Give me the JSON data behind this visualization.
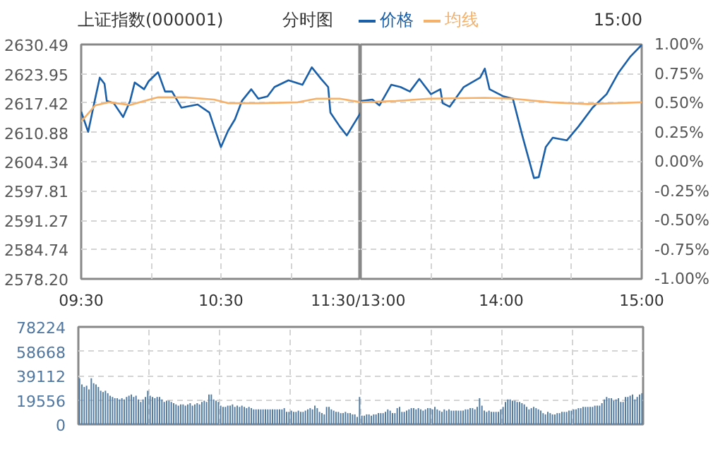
{
  "chart_data": [
    {
      "type": "line",
      "title": "上证指数(000001)",
      "subtitle": "分时图",
      "annotations": [
        "15:00"
      ],
      "legend": "top",
      "grid": true,
      "xlim": [
        9.5,
        11.5
      ],
      "xticks": [
        {
          "value": 9.5,
          "label": "09:30"
        },
        {
          "value": 10,
          "label": null
        },
        {
          "value": 10.5,
          "label": "10:30"
        },
        {
          "value": 11,
          "label": null
        },
        {
          "value": 11.5,
          "label": "11:30/"
        }
      ],
      "ylim": [
        2578.2,
        2630.49
      ],
      "yticks": [
        2630.49,
        2623.95,
        2617.42,
        2610.88,
        2604.34,
        2597.81,
        2591.27,
        2584.74,
        {
          "value": 2578.2,
          "label": "2578.20"
        }
      ],
      "series": [
        {
          "name": "价格",
          "color": "#1a5fa8",
          "x": [
            9.5,
            9.55,
            9.6,
            9.633,
            9.667,
            9.683,
            9.733,
            9.8,
            9.85,
            9.883,
            9.95,
            9.983,
            10.05,
            10.1,
            10.15,
            10.217,
            10.333,
            10.417,
            10.45,
            10.5,
            10.55,
            10.6,
            10.65,
            10.717,
            10.767,
            10.833,
            10.883,
            10.983,
            11.083,
            11.15,
            11.217,
            11.267,
            11.283,
            11.35,
            11.4,
            11.5
          ],
          "values": [
            2615.5,
            2611.0,
            2618.4,
            2623.1,
            2621.7,
            2617.9,
            2617.4,
            2614.3,
            2617.9,
            2622.0,
            2620.5,
            2622.3,
            2624.3,
            2620.0,
            2620.0,
            2616.4,
            2617.1,
            2615.3,
            2612.2,
            2607.6,
            2611.2,
            2613.8,
            2617.9,
            2620.5,
            2618.4,
            2618.9,
            2621.0,
            2622.5,
            2621.5,
            2625.4,
            2622.8,
            2621.0,
            2615.3,
            2612.2,
            2610.2,
            2615.3
          ]
        },
        {
          "name": "均线",
          "color": "#f5b06a",
          "x": [
            9.5,
            9.6,
            9.7,
            9.85,
            9.95,
            10.05,
            10.25,
            10.45,
            10.55,
            10.783,
            11.05,
            11.183,
            11.35,
            11.5
          ],
          "values": [
            2613.3,
            2616.9,
            2617.6,
            2617.0,
            2617.9,
            2618.7,
            2618.7,
            2618.2,
            2617.4,
            2617.4,
            2617.6,
            2618.4,
            2618.4,
            2617.6
          ]
        }
      ]
    },
    {
      "type": "line",
      "tick_labels": "x",
      "grid": true,
      "xlim": [
        13,
        15
      ],
      "xticks": [
        {
          "value": 13,
          "label": "13:00"
        },
        {
          "value": 13.5,
          "label": null
        },
        {
          "value": 14,
          "label": "14:00"
        },
        {
          "value": 14.5,
          "label": null
        },
        {
          "value": 15,
          "label": "15:00"
        }
      ],
      "ylim": [
        2578.2,
        2630.49
      ],
      "yticks": [
        2630.49,
        2623.95,
        2617.42,
        2610.88,
        2604.34,
        2597.81,
        2591.27,
        2584.74,
        2578.2
      ],
      "y2lim": [
        -1,
        1
      ],
      "y2ticks": [
        {
          "value": 1,
          "label": "1.00%"
        },
        {
          "value": 0.75,
          "label": "0.75%"
        },
        {
          "value": 0.5,
          "label": "0.50%"
        },
        {
          "value": 0.25,
          "label": "0.25%"
        },
        {
          "value": 0,
          "label": "0.00%"
        },
        {
          "value": -0.25,
          "label": "-0.25%"
        },
        {
          "value": -0.5,
          "label": "-0.50%"
        },
        {
          "value": -0.75,
          "label": "-0.75%"
        },
        {
          "value": -1,
          "label": "-1.00%"
        }
      ],
      "series": [
        {
          "color": "#1a5fa8",
          "x": [
            13.0,
            13.083,
            13.133,
            13.217,
            13.283,
            13.35,
            13.417,
            13.5,
            13.567,
            13.583,
            13.633,
            13.733,
            13.85,
            13.883,
            13.917,
            14.017,
            14.083,
            14.15,
            14.233,
            14.267,
            14.317,
            14.367,
            14.467,
            14.55,
            14.65,
            14.75,
            14.833,
            14.917,
            15
          ],
          "values": [
            2617.9,
            2618.2,
            2616.9,
            2621.5,
            2621.0,
            2620.0,
            2622.8,
            2619.4,
            2620.5,
            2617.4,
            2616.6,
            2621.0,
            2623.1,
            2625.1,
            2620.5,
            2618.9,
            2618.4,
            2610.2,
            2600.7,
            2600.9,
            2607.6,
            2609.7,
            2609.1,
            2612.2,
            2616.4,
            2619.4,
            2624.1,
            2627.7,
            2630.4
          ]
        },
        {
          "color": "#f5b06a",
          "x": [
            13.0,
            13.25,
            13.483,
            13.883,
            14.083,
            14.35,
            14.617,
            15
          ],
          "values": [
            2617.6,
            2617.9,
            2618.4,
            2618.6,
            2618.4,
            2617.6,
            2617.2,
            2617.6
          ]
        }
      ]
    },
    {
      "type": "bar",
      "tick_labels": "y",
      "grid": true,
      "categories": [
        null,
        null,
        null,
        null,
        null,
        null,
        null,
        null,
        null,
        null,
        null,
        null,
        null,
        null,
        null,
        null,
        null,
        null,
        null,
        null,
        null,
        null,
        null,
        null,
        null,
        null,
        null,
        null,
        null,
        null,
        null,
        null,
        null,
        null,
        null,
        null,
        null,
        null,
        null,
        null,
        null,
        null,
        null,
        null,
        null,
        null,
        null,
        null,
        null,
        null,
        null,
        null,
        null,
        null,
        null,
        null,
        null,
        null,
        null,
        null,
        null,
        null,
        null,
        null,
        null,
        null,
        null,
        null,
        null,
        null,
        null,
        null,
        null,
        null,
        null,
        null,
        null,
        null,
        null,
        null,
        null,
        null,
        null,
        null,
        null,
        null,
        null,
        null,
        null,
        null,
        null,
        null,
        null,
        null,
        null,
        null,
        null,
        null,
        null,
        null,
        null,
        null,
        null,
        null,
        null,
        null,
        null,
        null,
        null,
        null,
        null,
        null,
        null,
        null,
        null,
        null,
        null,
        null,
        null,
        null,
        null,
        null,
        null,
        null,
        null,
        null,
        null,
        null,
        null,
        null,
        null,
        null,
        null,
        null,
        null,
        null,
        null,
        null,
        null,
        null,
        null,
        null,
        null,
        null,
        null,
        null,
        null,
        null,
        null,
        null,
        null,
        null,
        null,
        null,
        null,
        null,
        null,
        null,
        null,
        null,
        null,
        null,
        null,
        null,
        null,
        null,
        null,
        null,
        null,
        null,
        null,
        null,
        null,
        null,
        null,
        null,
        null,
        null,
        null,
        null,
        null,
        null,
        null,
        null,
        null,
        null,
        null,
        null,
        null,
        null,
        null,
        null,
        null,
        null,
        null,
        null,
        null,
        null,
        null,
        null,
        null,
        null,
        null,
        null,
        null,
        null,
        null,
        null,
        null,
        null,
        null,
        null,
        null,
        null,
        null,
        null,
        null,
        null,
        null,
        null,
        null,
        null,
        null,
        null,
        null,
        null,
        null,
        null,
        null,
        null,
        null,
        null,
        null,
        null,
        null,
        null,
        null,
        null,
        null,
        null
      ],
      "ylim": [
        0,
        78224
      ],
      "yticks": [
        0,
        19556,
        39112,
        58668,
        78224
      ],
      "series": [
        {
          "color": "#557da3",
          "values": [
            37000,
            32000,
            30000,
            31000,
            28000,
            37000,
            33000,
            32000,
            30000,
            27000,
            26000,
            27000,
            25000,
            23000,
            22000,
            21000,
            21000,
            20000,
            21000,
            20000,
            22000,
            23000,
            24000,
            22000,
            23000,
            20000,
            18000,
            20000,
            22000,
            27000,
            23000,
            22000,
            21000,
            22000,
            22000,
            20000,
            18000,
            19000,
            19000,
            18000,
            17000,
            16000,
            15000,
            16000,
            16000,
            15000,
            16000,
            17000,
            15000,
            16000,
            17000,
            16000,
            18000,
            19000,
            18000,
            24000,
            24000,
            20000,
            19000,
            18000,
            15000,
            14000,
            14000,
            15000,
            15000,
            16000,
            14000,
            15000,
            14000,
            15000,
            14000,
            13000,
            14000,
            13000,
            12000,
            12000,
            12000,
            12000,
            12000,
            12000,
            12000,
            12000,
            12000,
            12000,
            12000,
            12000,
            12000,
            13000,
            10000,
            10000,
            11000,
            10000,
            10000,
            11000,
            10000,
            10000,
            11000,
            12000,
            13000,
            12000,
            15000,
            13000,
            10000,
            9000,
            8000,
            14000,
            14000,
            12000,
            11000,
            10000,
            10000,
            9000,
            9000,
            10000,
            9000,
            9000,
            8000,
            8000,
            6000,
            22000,
            7000,
            7000,
            8000,
            8000,
            7000,
            8000,
            8000,
            9000,
            9000,
            9000,
            10000,
            12000,
            11000,
            9000,
            9000,
            13000,
            14000,
            10000,
            10000,
            11000,
            12000,
            13000,
            13000,
            12000,
            13000,
            12000,
            11000,
            12000,
            13000,
            13000,
            12000,
            14000,
            12000,
            11000,
            10000,
            12000,
            11000,
            12000,
            11000,
            11000,
            11000,
            11000,
            11000,
            11000,
            12000,
            12000,
            13000,
            13000,
            12000,
            14000,
            21000,
            15000,
            11000,
            10000,
            11000,
            10000,
            10000,
            10000,
            10000,
            12000,
            14000,
            18000,
            20000,
            20000,
            19000,
            19000,
            18000,
            18000,
            17000,
            16000,
            14000,
            12000,
            13000,
            14000,
            13000,
            12000,
            11000,
            9000,
            8000,
            10000,
            9000,
            8000,
            8000,
            9000,
            9000,
            10000,
            10000,
            10000,
            11000,
            11000,
            12000,
            12000,
            13000,
            13000,
            14000,
            14000,
            14000,
            14000,
            14000,
            15000,
            15000,
            15000,
            17000,
            20000,
            22000,
            21000,
            21000,
            19000,
            20000,
            21000,
            18000,
            18000,
            22000,
            22000,
            23000,
            24000,
            20000,
            22000,
            24000,
            25000
          ]
        }
      ]
    }
  ]
}
